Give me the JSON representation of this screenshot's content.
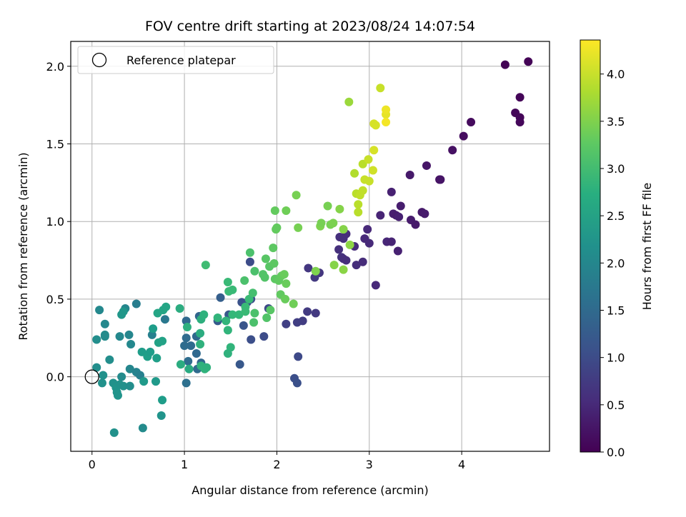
{
  "chart_data": {
    "type": "scatter",
    "title": "FOV centre drift starting at 2023/08/24 14:07:54",
    "xlabel": "Angular distance from reference (arcmin)",
    "ylabel": "Rotation from reference (arcmin)",
    "xlim": [
      -0.23,
      4.95
    ],
    "ylim": [
      -0.48,
      2.16
    ],
    "xticks": [
      0,
      1,
      2,
      3,
      4
    ],
    "xtick_labels": [
      "0",
      "1",
      "2",
      "3",
      "4"
    ],
    "yticks": [
      0.0,
      0.5,
      1.0,
      1.5,
      2.0
    ],
    "ytick_labels": [
      "0.0",
      "0.5",
      "1.0",
      "1.5",
      "2.0"
    ],
    "grid": true,
    "legend": {
      "position": "top-left",
      "entries": [
        {
          "label": "Reference platepar",
          "marker": "open-circle"
        }
      ]
    },
    "reference_point": {
      "x": 0,
      "y": 0
    },
    "colorbar": {
      "label": "Hours from first FF file",
      "colormap": "viridis",
      "range": [
        0.0,
        4.36
      ],
      "ticks": [
        0.0,
        0.5,
        1.0,
        1.5,
        2.0,
        2.5,
        3.0,
        3.5,
        4.0
      ],
      "tick_labels": [
        "0.0",
        "0.5",
        "1.0",
        "1.5",
        "2.0",
        "2.5",
        "3.0",
        "3.5",
        "4.0"
      ]
    },
    "points": [
      {
        "x": 4.47,
        "y": 2.01,
        "h": 0.02
      },
      {
        "x": 4.72,
        "y": 2.03,
        "h": 0.03
      },
      {
        "x": 4.63,
        "y": 1.8,
        "h": 0.05
      },
      {
        "x": 4.58,
        "y": 1.7,
        "h": 0.06
      },
      {
        "x": 4.63,
        "y": 1.67,
        "h": 0.07
      },
      {
        "x": 4.63,
        "y": 1.64,
        "h": 0.08
      },
      {
        "x": 4.1,
        "y": 1.64,
        "h": 0.12
      },
      {
        "x": 4.02,
        "y": 1.55,
        "h": 0.15
      },
      {
        "x": 3.9,
        "y": 1.46,
        "h": 0.2
      },
      {
        "x": 3.62,
        "y": 1.36,
        "h": 0.25
      },
      {
        "x": 3.44,
        "y": 1.3,
        "h": 0.3
      },
      {
        "x": 3.76,
        "y": 1.27,
        "h": 0.22
      },
      {
        "x": 3.77,
        "y": 1.27,
        "h": 0.24
      },
      {
        "x": 3.24,
        "y": 1.19,
        "h": 0.4
      },
      {
        "x": 3.34,
        "y": 1.1,
        "h": 0.35
      },
      {
        "x": 3.57,
        "y": 1.06,
        "h": 0.3
      },
      {
        "x": 3.6,
        "y": 1.05,
        "h": 0.32
      },
      {
        "x": 3.26,
        "y": 1.05,
        "h": 0.38
      },
      {
        "x": 3.29,
        "y": 1.04,
        "h": 0.36
      },
      {
        "x": 3.32,
        "y": 1.03,
        "h": 0.4
      },
      {
        "x": 3.12,
        "y": 1.04,
        "h": 0.45
      },
      {
        "x": 3.45,
        "y": 1.01,
        "h": 0.33
      },
      {
        "x": 3.5,
        "y": 0.98,
        "h": 0.31
      },
      {
        "x": 2.98,
        "y": 0.95,
        "h": 0.5
      },
      {
        "x": 2.75,
        "y": 0.92,
        "h": 0.55
      },
      {
        "x": 2.68,
        "y": 0.9,
        "h": 0.6
      },
      {
        "x": 2.72,
        "y": 0.89,
        "h": 0.58
      },
      {
        "x": 2.95,
        "y": 0.89,
        "h": 0.5
      },
      {
        "x": 3.0,
        "y": 0.86,
        "h": 0.52
      },
      {
        "x": 3.19,
        "y": 0.87,
        "h": 0.47
      },
      {
        "x": 3.24,
        "y": 0.87,
        "h": 0.45
      },
      {
        "x": 2.84,
        "y": 0.84,
        "h": 0.55
      },
      {
        "x": 2.67,
        "y": 0.82,
        "h": 0.6
      },
      {
        "x": 3.31,
        "y": 0.81,
        "h": 0.4
      },
      {
        "x": 2.7,
        "y": 0.77,
        "h": 0.62
      },
      {
        "x": 2.72,
        "y": 0.76,
        "h": 0.6
      },
      {
        "x": 2.75,
        "y": 0.75,
        "h": 0.58
      },
      {
        "x": 2.86,
        "y": 0.72,
        "h": 0.57
      },
      {
        "x": 2.93,
        "y": 0.74,
        "h": 0.55
      },
      {
        "x": 2.34,
        "y": 0.7,
        "h": 0.7
      },
      {
        "x": 2.46,
        "y": 0.67,
        "h": 0.68
      },
      {
        "x": 2.41,
        "y": 0.64,
        "h": 0.72
      },
      {
        "x": 3.07,
        "y": 0.59,
        "h": 0.5
      },
      {
        "x": 2.33,
        "y": 0.42,
        "h": 0.75
      },
      {
        "x": 2.42,
        "y": 0.41,
        "h": 0.73
      },
      {
        "x": 2.28,
        "y": 0.36,
        "h": 0.78
      },
      {
        "x": 2.22,
        "y": 0.35,
        "h": 0.8
      },
      {
        "x": 2.1,
        "y": 0.34,
        "h": 0.82
      },
      {
        "x": 2.23,
        "y": 0.13,
        "h": 0.95
      },
      {
        "x": 2.19,
        "y": -0.01,
        "h": 1.05
      },
      {
        "x": 2.22,
        "y": -0.04,
        "h": 1.07
      },
      {
        "x": 1.71,
        "y": 0.74,
        "h": 1.0
      },
      {
        "x": 1.72,
        "y": 0.5,
        "h": 1.05
      },
      {
        "x": 1.68,
        "y": 0.48,
        "h": 1.05
      },
      {
        "x": 1.62,
        "y": 0.48,
        "h": 1.1
      },
      {
        "x": 1.91,
        "y": 0.44,
        "h": 0.95
      },
      {
        "x": 1.48,
        "y": 0.4,
        "h": 1.2
      },
      {
        "x": 1.64,
        "y": 0.33,
        "h": 1.15
      },
      {
        "x": 1.36,
        "y": 0.36,
        "h": 1.25
      },
      {
        "x": 1.86,
        "y": 0.26,
        "h": 1.0
      },
      {
        "x": 1.72,
        "y": 0.24,
        "h": 1.05
      },
      {
        "x": 1.6,
        "y": 0.08,
        "h": 1.2
      },
      {
        "x": 1.39,
        "y": 0.51,
        "h": 1.3
      },
      {
        "x": 1.16,
        "y": 0.39,
        "h": 1.4
      },
      {
        "x": 1.02,
        "y": 0.36,
        "h": 1.45
      },
      {
        "x": 1.13,
        "y": 0.26,
        "h": 1.45
      },
      {
        "x": 1.02,
        "y": 0.25,
        "h": 1.5
      },
      {
        "x": 1.07,
        "y": 0.2,
        "h": 1.5
      },
      {
        "x": 1.0,
        "y": 0.2,
        "h": 1.52
      },
      {
        "x": 1.13,
        "y": 0.15,
        "h": 1.48
      },
      {
        "x": 1.18,
        "y": 0.09,
        "h": 1.45
      },
      {
        "x": 1.04,
        "y": 0.1,
        "h": 1.55
      },
      {
        "x": 1.14,
        "y": 0.05,
        "h": 1.5
      },
      {
        "x": 1.02,
        "y": -0.04,
        "h": 1.6
      },
      {
        "x": 0.48,
        "y": 0.47,
        "h": 1.85
      },
      {
        "x": 0.79,
        "y": 0.37,
        "h": 1.75
      },
      {
        "x": 0.65,
        "y": 0.27,
        "h": 1.9
      },
      {
        "x": 0.08,
        "y": 0.43,
        "h": 2.05
      },
      {
        "x": 0.36,
        "y": 0.44,
        "h": 2.0
      },
      {
        "x": 0.14,
        "y": 0.34,
        "h": 2.05
      },
      {
        "x": 0.14,
        "y": 0.27,
        "h": 2.1
      },
      {
        "x": 0.14,
        "y": 0.26,
        "h": 2.1
      },
      {
        "x": 0.05,
        "y": 0.24,
        "h": 2.15
      },
      {
        "x": 0.4,
        "y": 0.27,
        "h": 2.0
      },
      {
        "x": 0.42,
        "y": 0.21,
        "h": 2.05
      },
      {
        "x": 0.3,
        "y": 0.26,
        "h": 2.05
      },
      {
        "x": 0.05,
        "y": 0.06,
        "h": 2.15
      },
      {
        "x": 0.19,
        "y": 0.11,
        "h": 2.15
      },
      {
        "x": 0.41,
        "y": 0.05,
        "h": 2.0
      },
      {
        "x": 0.48,
        "y": 0.03,
        "h": 1.95
      },
      {
        "x": 0.52,
        "y": 0.01,
        "h": 1.9
      },
      {
        "x": 0.32,
        "y": 0.0,
        "h": 2.1
      },
      {
        "x": 0.12,
        "y": 0.01,
        "h": 2.2
      },
      {
        "x": 0.11,
        "y": -0.04,
        "h": 2.2
      },
      {
        "x": 0.23,
        "y": -0.04,
        "h": 2.2
      },
      {
        "x": 0.26,
        "y": -0.07,
        "h": 2.25
      },
      {
        "x": 0.3,
        "y": -0.05,
        "h": 2.22
      },
      {
        "x": 0.34,
        "y": -0.06,
        "h": 2.2
      },
      {
        "x": 0.41,
        "y": -0.06,
        "h": 2.15
      },
      {
        "x": 0.27,
        "y": -0.1,
        "h": 2.25
      },
      {
        "x": 0.28,
        "y": -0.12,
        "h": 2.25
      },
      {
        "x": 0.24,
        "y": -0.36,
        "h": 2.2
      },
      {
        "x": 0.55,
        "y": -0.33,
        "h": 2.1
      },
      {
        "x": 0.75,
        "y": -0.25,
        "h": 2.25
      },
      {
        "x": 0.76,
        "y": -0.15,
        "h": 2.4
      },
      {
        "x": 0.69,
        "y": -0.03,
        "h": 2.35
      },
      {
        "x": 0.56,
        "y": -0.03,
        "h": 2.35
      },
      {
        "x": 0.32,
        "y": 0.4,
        "h": 2.3
      },
      {
        "x": 0.34,
        "y": 0.42,
        "h": 2.3
      },
      {
        "x": 0.54,
        "y": 0.16,
        "h": 2.4
      },
      {
        "x": 0.6,
        "y": 0.13,
        "h": 2.45
      },
      {
        "x": 0.63,
        "y": 0.16,
        "h": 2.4
      },
      {
        "x": 0.7,
        "y": 0.12,
        "h": 2.45
      },
      {
        "x": 0.66,
        "y": 0.31,
        "h": 2.4
      },
      {
        "x": 0.72,
        "y": 0.22,
        "h": 2.5
      },
      {
        "x": 0.76,
        "y": 0.23,
        "h": 2.5
      },
      {
        "x": 0.71,
        "y": 0.41,
        "h": 2.55
      },
      {
        "x": 0.77,
        "y": 0.43,
        "h": 2.55
      },
      {
        "x": 0.8,
        "y": 0.45,
        "h": 2.55
      },
      {
        "x": 0.95,
        "y": 0.44,
        "h": 2.7
      },
      {
        "x": 0.96,
        "y": 0.08,
        "h": 2.7
      },
      {
        "x": 1.05,
        "y": 0.05,
        "h": 2.65
      },
      {
        "x": 1.03,
        "y": 0.32,
        "h": 2.75
      },
      {
        "x": 1.18,
        "y": 0.37,
        "h": 2.75
      },
      {
        "x": 1.17,
        "y": 0.28,
        "h": 2.7
      },
      {
        "x": 1.21,
        "y": 0.4,
        "h": 2.8
      },
      {
        "x": 1.17,
        "y": 0.21,
        "h": 2.8
      },
      {
        "x": 1.18,
        "y": 0.07,
        "h": 2.8
      },
      {
        "x": 1.22,
        "y": 0.05,
        "h": 2.82
      },
      {
        "x": 1.24,
        "y": 0.06,
        "h": 2.8
      },
      {
        "x": 1.23,
        "y": 0.72,
        "h": 3.0
      },
      {
        "x": 1.36,
        "y": 0.38,
        "h": 2.85
      },
      {
        "x": 1.45,
        "y": 0.36,
        "h": 2.85
      },
      {
        "x": 1.47,
        "y": 0.3,
        "h": 2.85
      },
      {
        "x": 1.5,
        "y": 0.19,
        "h": 2.85
      },
      {
        "x": 1.47,
        "y": 0.15,
        "h": 2.8
      },
      {
        "x": 1.47,
        "y": 0.61,
        "h": 2.95
      },
      {
        "x": 1.48,
        "y": 0.55,
        "h": 2.95
      },
      {
        "x": 1.52,
        "y": 0.56,
        "h": 2.95
      },
      {
        "x": 1.52,
        "y": 0.4,
        "h": 2.9
      },
      {
        "x": 1.59,
        "y": 0.4,
        "h": 2.9
      },
      {
        "x": 1.66,
        "y": 0.45,
        "h": 2.95
      },
      {
        "x": 1.66,
        "y": 0.42,
        "h": 2.95
      },
      {
        "x": 1.7,
        "y": 0.5,
        "h": 2.95
      },
      {
        "x": 1.71,
        "y": 0.8,
        "h": 3.1
      },
      {
        "x": 1.65,
        "y": 0.62,
        "h": 3.1
      },
      {
        "x": 1.74,
        "y": 0.54,
        "h": 3.05
      },
      {
        "x": 1.76,
        "y": 0.41,
        "h": 3.1
      },
      {
        "x": 1.75,
        "y": 0.35,
        "h": 3.1
      },
      {
        "x": 1.76,
        "y": 0.68,
        "h": 3.1
      },
      {
        "x": 1.85,
        "y": 0.66,
        "h": 3.15
      },
      {
        "x": 1.87,
        "y": 0.64,
        "h": 3.15
      },
      {
        "x": 1.88,
        "y": 0.76,
        "h": 3.2
      },
      {
        "x": 1.92,
        "y": 0.71,
        "h": 3.2
      },
      {
        "x": 1.89,
        "y": 0.38,
        "h": 3.15
      },
      {
        "x": 1.93,
        "y": 0.43,
        "h": 3.2
      },
      {
        "x": 1.96,
        "y": 0.83,
        "h": 3.25
      },
      {
        "x": 1.97,
        "y": 0.73,
        "h": 3.25
      },
      {
        "x": 1.98,
        "y": 0.63,
        "h": 3.25
      },
      {
        "x": 1.98,
        "y": 1.07,
        "h": 3.3
      },
      {
        "x": 1.99,
        "y": 0.95,
        "h": 3.3
      },
      {
        "x": 2.0,
        "y": 0.96,
        "h": 3.3
      },
      {
        "x": 2.02,
        "y": 0.62,
        "h": 3.28
      },
      {
        "x": 2.04,
        "y": 0.53,
        "h": 3.28
      },
      {
        "x": 2.05,
        "y": 0.65,
        "h": 3.3
      },
      {
        "x": 2.08,
        "y": 0.66,
        "h": 3.35
      },
      {
        "x": 2.09,
        "y": 0.5,
        "h": 3.35
      },
      {
        "x": 2.1,
        "y": 0.6,
        "h": 3.35
      },
      {
        "x": 2.1,
        "y": 1.07,
        "h": 3.4
      },
      {
        "x": 2.18,
        "y": 0.47,
        "h": 3.4
      },
      {
        "x": 2.21,
        "y": 1.17,
        "h": 3.45
      },
      {
        "x": 2.23,
        "y": 0.96,
        "h": 3.45
      },
      {
        "x": 2.42,
        "y": 0.68,
        "h": 3.5
      },
      {
        "x": 2.47,
        "y": 0.97,
        "h": 3.5
      },
      {
        "x": 2.48,
        "y": 0.99,
        "h": 3.45
      },
      {
        "x": 2.55,
        "y": 1.1,
        "h": 3.45
      },
      {
        "x": 2.58,
        "y": 0.98,
        "h": 3.45
      },
      {
        "x": 2.61,
        "y": 0.99,
        "h": 3.48
      },
      {
        "x": 2.62,
        "y": 0.72,
        "h": 3.55
      },
      {
        "x": 2.68,
        "y": 1.08,
        "h": 3.55
      },
      {
        "x": 2.72,
        "y": 0.95,
        "h": 3.55
      },
      {
        "x": 2.72,
        "y": 0.69,
        "h": 3.58
      },
      {
        "x": 2.78,
        "y": 1.77,
        "h": 3.7
      },
      {
        "x": 2.79,
        "y": 0.85,
        "h": 3.6
      },
      {
        "x": 2.84,
        "y": 1.31,
        "h": 3.85
      },
      {
        "x": 2.86,
        "y": 1.18,
        "h": 3.9
      },
      {
        "x": 2.88,
        "y": 1.11,
        "h": 3.9
      },
      {
        "x": 2.88,
        "y": 1.06,
        "h": 3.9
      },
      {
        "x": 2.9,
        "y": 1.17,
        "h": 3.95
      },
      {
        "x": 2.93,
        "y": 1.2,
        "h": 3.95
      },
      {
        "x": 2.93,
        "y": 1.37,
        "h": 3.9
      },
      {
        "x": 2.95,
        "y": 1.27,
        "h": 4.0
      },
      {
        "x": 2.99,
        "y": 1.4,
        "h": 4.0
      },
      {
        "x": 3.0,
        "y": 1.26,
        "h": 4.0
      },
      {
        "x": 3.04,
        "y": 1.33,
        "h": 4.05
      },
      {
        "x": 3.05,
        "y": 1.46,
        "h": 4.1
      },
      {
        "x": 3.05,
        "y": 1.63,
        "h": 4.1
      },
      {
        "x": 3.07,
        "y": 1.62,
        "h": 4.1
      },
      {
        "x": 3.12,
        "y": 1.86,
        "h": 4.0
      },
      {
        "x": 3.18,
        "y": 1.69,
        "h": 4.2
      },
      {
        "x": 3.18,
        "y": 1.72,
        "h": 4.25
      },
      {
        "x": 3.18,
        "y": 1.64,
        "h": 4.3
      }
    ]
  }
}
